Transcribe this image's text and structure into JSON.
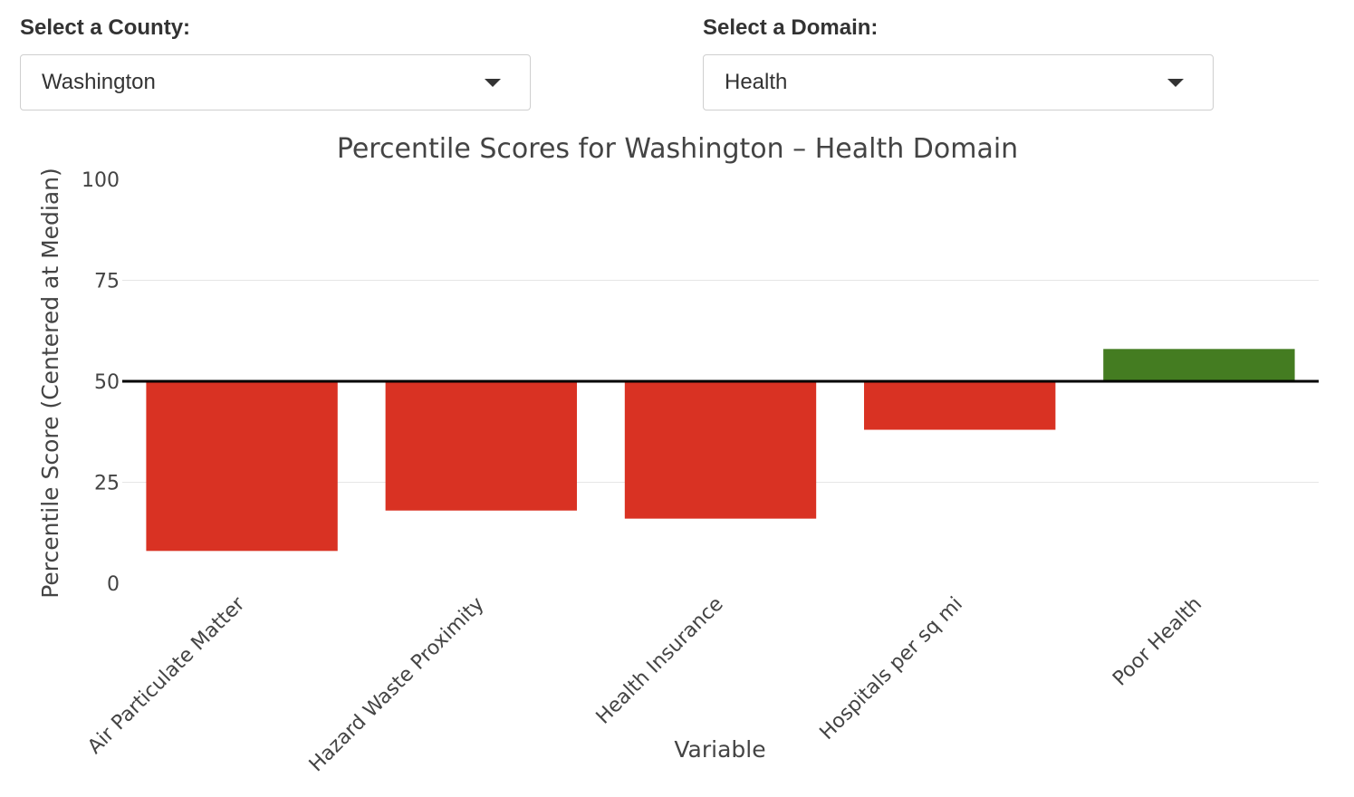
{
  "controls": {
    "county": {
      "label": "Select a County:",
      "value": "Washington"
    },
    "domain": {
      "label": "Select a Domain:",
      "value": "Health"
    }
  },
  "colors": {
    "negative": "#d93223",
    "positive": "#447c21",
    "baseline": "#000000",
    "grid": "#e6e6e6"
  },
  "chart_data": {
    "type": "bar",
    "title": "Percentile Scores for Washington – Health Domain",
    "xlabel": "Variable",
    "ylabel": "Percentile Score (Centered at Median)",
    "ylim": [
      0,
      100
    ],
    "yticks": [
      0,
      25,
      50,
      75,
      100
    ],
    "baseline": 50,
    "grid": true,
    "categories": [
      "Air Particulate Matter",
      "Hazard Waste Proximity",
      "Health Insurance",
      "Hospitals per sq mi",
      "Poor Health"
    ],
    "values": [
      8,
      18,
      16,
      38,
      58
    ]
  }
}
